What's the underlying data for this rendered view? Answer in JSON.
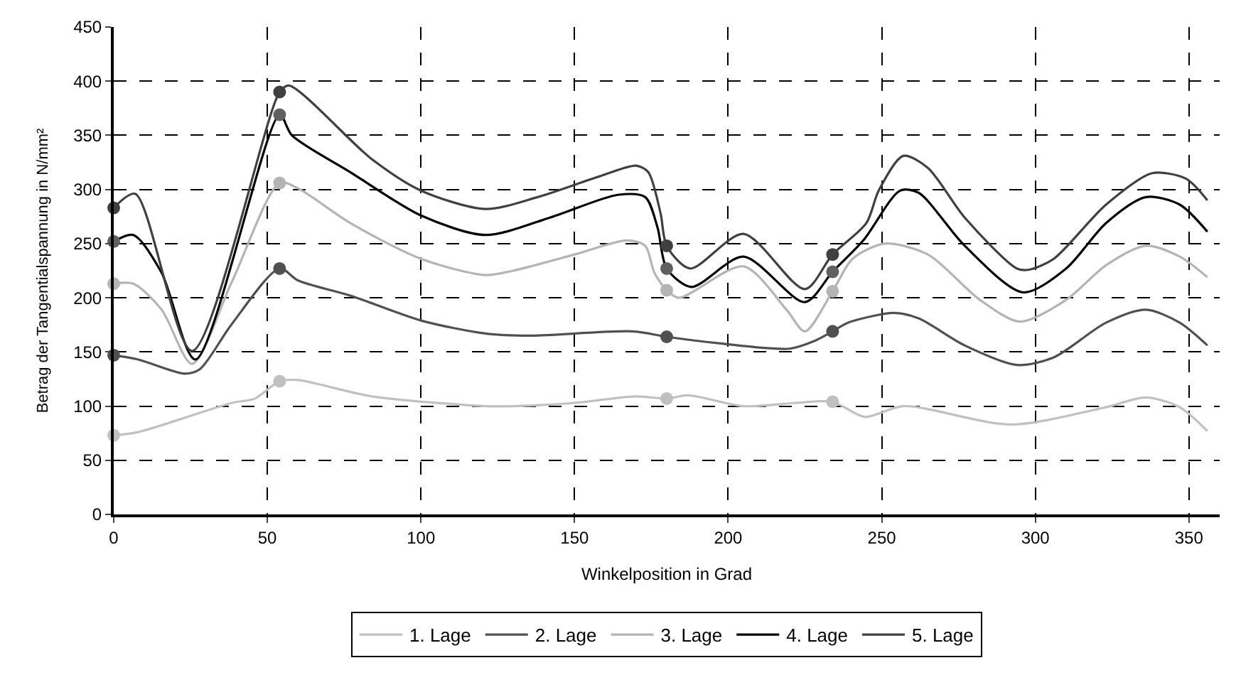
{
  "chart_data": {
    "type": "line",
    "xlabel": "Winkelposition in Grad",
    "ylabel": "Betrag der Tangentialspannung in N/mm²",
    "xlim": [
      0,
      360
    ],
    "xticks": [
      0,
      50,
      100,
      150,
      200,
      250,
      300,
      350
    ],
    "ylim": [
      0,
      450
    ],
    "yticks": [
      0,
      50,
      100,
      150,
      200,
      250,
      300,
      350,
      400,
      450
    ],
    "grid": true,
    "legend": "bottom",
    "line_style": "solid",
    "marker": "none",
    "series": [
      {
        "name": "1. Lage",
        "color": "#c0c0c0",
        "x": [
          0,
          8,
          38.5,
          46,
          54,
          60,
          84,
          121,
          130,
          150,
          170,
          180,
          187,
          205,
          222,
          234,
          244.5,
          257,
          292,
          323,
          336,
          347,
          356
        ],
        "values": [
          73,
          76,
          103,
          107,
          123,
          124,
          109,
          100,
          100,
          103,
          109,
          107,
          110,
          100,
          103,
          104,
          90,
          100,
          83,
          99,
          108,
          99,
          77
        ]
      },
      {
        "name": "2. Lage",
        "color": "#505050",
        "x": [
          0,
          8,
          23,
          28,
          38.5,
          54,
          60,
          77,
          100,
          121,
          135,
          169,
          180,
          197,
          220,
          228,
          234,
          239,
          254,
          262,
          277,
          294,
          306,
          323,
          336,
          347,
          356
        ],
        "values": [
          147,
          143,
          130,
          134,
          176,
          227,
          216,
          202,
          179,
          167,
          165,
          169,
          164,
          158,
          153,
          160,
          169,
          177,
          186,
          181,
          156,
          138,
          145,
          177,
          189,
          177,
          156
        ]
      },
      {
        "name": "3. Lage",
        "color": "#b4b4b4",
        "x": [
          0,
          6.4,
          15.6,
          25.5,
          38.5,
          54,
          60,
          77,
          100,
          121,
          130,
          150,
          167,
          173,
          176,
          180,
          184,
          205,
          219,
          225,
          234,
          240.5,
          251,
          265,
          282,
          295,
          310,
          323,
          336,
          347,
          356
        ],
        "values": [
          213,
          213,
          189,
          139,
          215,
          306,
          301,
          269,
          236,
          221,
          225,
          240,
          253,
          248,
          223,
          207,
          200,
          229,
          189,
          169,
          206,
          236,
          250,
          240,
          198,
          178,
          198,
          230,
          248,
          238,
          219
        ]
      },
      {
        "name": "4. Lage",
        "color": "#000000",
        "x": [
          0,
          6.4,
          15.6,
          26.6,
          54,
          58,
          77,
          100,
          121,
          142,
          164,
          173,
          177,
          180,
          188,
          205,
          225,
          234,
          244,
          256,
          262,
          277,
          296,
          310,
          323,
          336,
          347,
          356
        ],
        "values": [
          252,
          258,
          223,
          143,
          369,
          350,
          316,
          276,
          258,
          274,
          295,
          293,
          265,
          227,
          210,
          238,
          196,
          224,
          253,
          299,
          297,
          248,
          205,
          227,
          269,
          293,
          286,
          261
        ]
      },
      {
        "name": "5. Lage",
        "color": "#404040",
        "x": [
          0,
          7,
          25.5,
          54,
          57,
          84,
          100,
          121,
          138,
          158,
          170,
          174,
          178,
          180,
          187.6,
          205,
          225,
          234,
          245,
          249,
          257,
          265,
          277,
          294,
          298,
          306,
          323,
          338,
          349,
          356
        ],
        "values": [
          283,
          296,
          151,
          390,
          396,
          328,
          299,
          282,
          293,
          312,
          322,
          316,
          278,
          248,
          227,
          259,
          208,
          240,
          269,
          299,
          331,
          320,
          274,
          227,
          226,
          236,
          286,
          315,
          310,
          290
        ]
      },
      {
        "type": "scatter",
        "marker": "circle",
        "color": "#c0c0c0",
        "x": [
          0,
          54,
          180,
          234
        ],
        "values": [
          73,
          123,
          107,
          104
        ]
      },
      {
        "type": "scatter",
        "marker": "circle",
        "color": "#505050",
        "x": [
          0,
          54,
          180,
          234
        ],
        "values": [
          147,
          227,
          164,
          169
        ]
      },
      {
        "type": "scatter",
        "marker": "circle",
        "color": "#b4b4b4",
        "x": [
          0,
          54,
          180,
          234
        ],
        "values": [
          213,
          306,
          207,
          206
        ]
      },
      {
        "type": "scatter",
        "marker": "circle",
        "color": "#606060",
        "x": [
          0,
          54,
          180,
          234
        ],
        "values": [
          252,
          369,
          227,
          224
        ]
      },
      {
        "type": "scatter",
        "marker": "circle",
        "color": "#404040",
        "x": [
          0,
          54,
          180,
          234
        ],
        "values": [
          283,
          390,
          248,
          240
        ]
      }
    ]
  }
}
